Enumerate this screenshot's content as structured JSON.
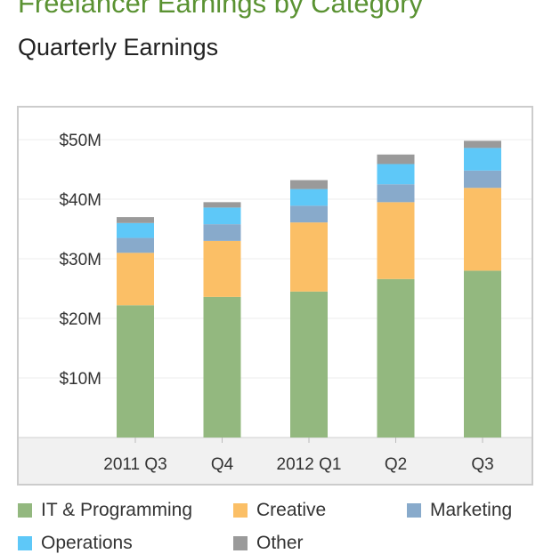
{
  "title": "Freelancer Earnings by Category",
  "subtitle": "Quarterly Earnings",
  "chart_data": {
    "type": "bar",
    "stacked": true,
    "categories": [
      "2011 Q3",
      "Q4",
      "2012 Q1",
      "Q2",
      "Q3"
    ],
    "ylim": [
      0,
      50
    ],
    "yticks": [
      10,
      20,
      30,
      40,
      50
    ],
    "ytick_labels": [
      "$10M",
      "$20M",
      "$30M",
      "$40M",
      "$50M"
    ],
    "unit": "$M",
    "grid": true,
    "legend_position": "bottom",
    "series": [
      {
        "name": "IT & Programming",
        "color": "#93b87f",
        "values": [
          22.2,
          23.6,
          24.5,
          26.6,
          28.0
        ]
      },
      {
        "name": "Creative",
        "color": "#fbbf66",
        "values": [
          8.8,
          9.4,
          11.6,
          12.9,
          13.9
        ]
      },
      {
        "name": "Marketing",
        "color": "#88aacb",
        "values": [
          2.5,
          2.8,
          2.8,
          3.0,
          2.9
        ]
      },
      {
        "name": "Operations",
        "color": "#5ec8f8",
        "values": [
          2.5,
          2.8,
          2.8,
          3.4,
          3.8
        ]
      },
      {
        "name": "Other",
        "color": "#9a9a9a",
        "values": [
          1.0,
          0.9,
          1.5,
          1.6,
          1.2
        ]
      }
    ]
  }
}
